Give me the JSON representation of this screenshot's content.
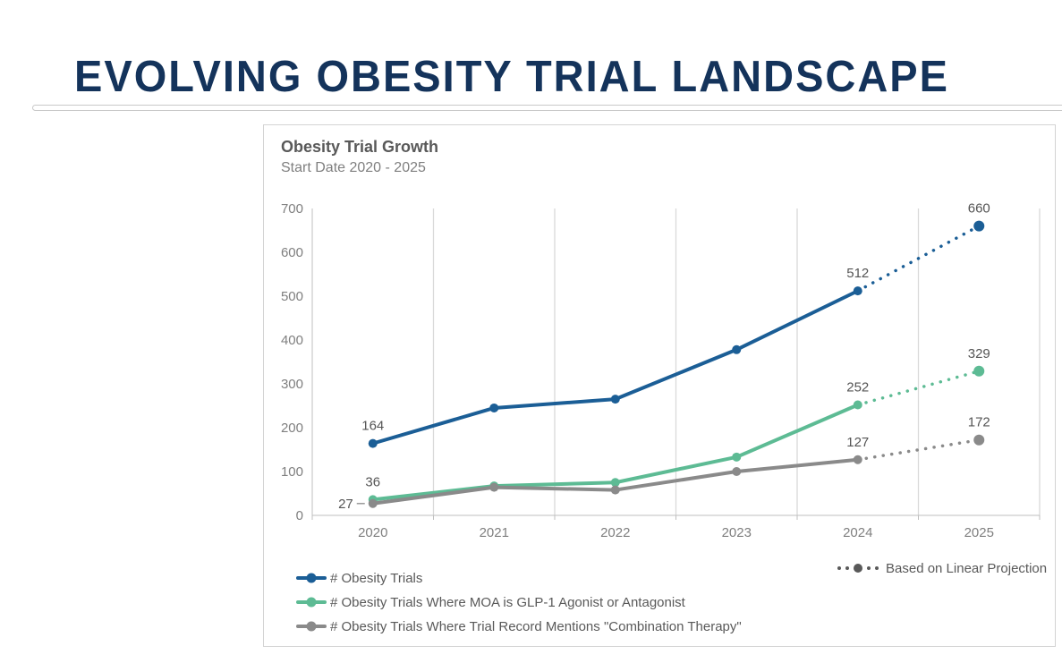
{
  "page": {
    "title": "EVOLVING OBESITY TRIAL LANDSCAPE"
  },
  "chart_data": {
    "type": "line",
    "title": "Obesity Trial Growth",
    "subtitle": "Start Date 2020 - 2025",
    "categories": [
      "2020",
      "2021",
      "2022",
      "2023",
      "2024",
      "2025"
    ],
    "ylim": [
      0,
      700
    ],
    "yticks": [
      0,
      100,
      200,
      300,
      400,
      500,
      600,
      700
    ],
    "grid": "vertical-only",
    "legend_position": "bottom-left",
    "projection_start_index": 4,
    "projection_style": "dotted",
    "projection_legend_label": "Based on Linear Projection",
    "series": [
      {
        "name": "# Obesity Trials",
        "color": "#1b5e96",
        "values": [
          164,
          245,
          265,
          378,
          512,
          660
        ],
        "point_labels": [
          "164",
          null,
          null,
          null,
          "512",
          "660"
        ],
        "label_positions": [
          "top",
          null,
          null,
          null,
          "top",
          "top"
        ]
      },
      {
        "name": "# Obesity Trials Where MOA is GLP-1 Agonist or Antagonist",
        "color": "#5dbb94",
        "values": [
          36,
          67,
          75,
          133,
          252,
          329
        ],
        "point_labels": [
          "36",
          null,
          null,
          null,
          "252",
          "329"
        ],
        "label_positions": [
          "top",
          null,
          null,
          null,
          "top",
          "top"
        ]
      },
      {
        "name": "# Obesity Trials Where Trial Record Mentions \"Combination Therapy\"",
        "color": "#8a8a8a",
        "values": [
          27,
          64,
          58,
          100,
          127,
          172
        ],
        "point_labels": [
          "27",
          null,
          null,
          null,
          "127",
          "172"
        ],
        "label_positions": [
          "left",
          null,
          null,
          null,
          "top",
          "top"
        ]
      }
    ]
  }
}
